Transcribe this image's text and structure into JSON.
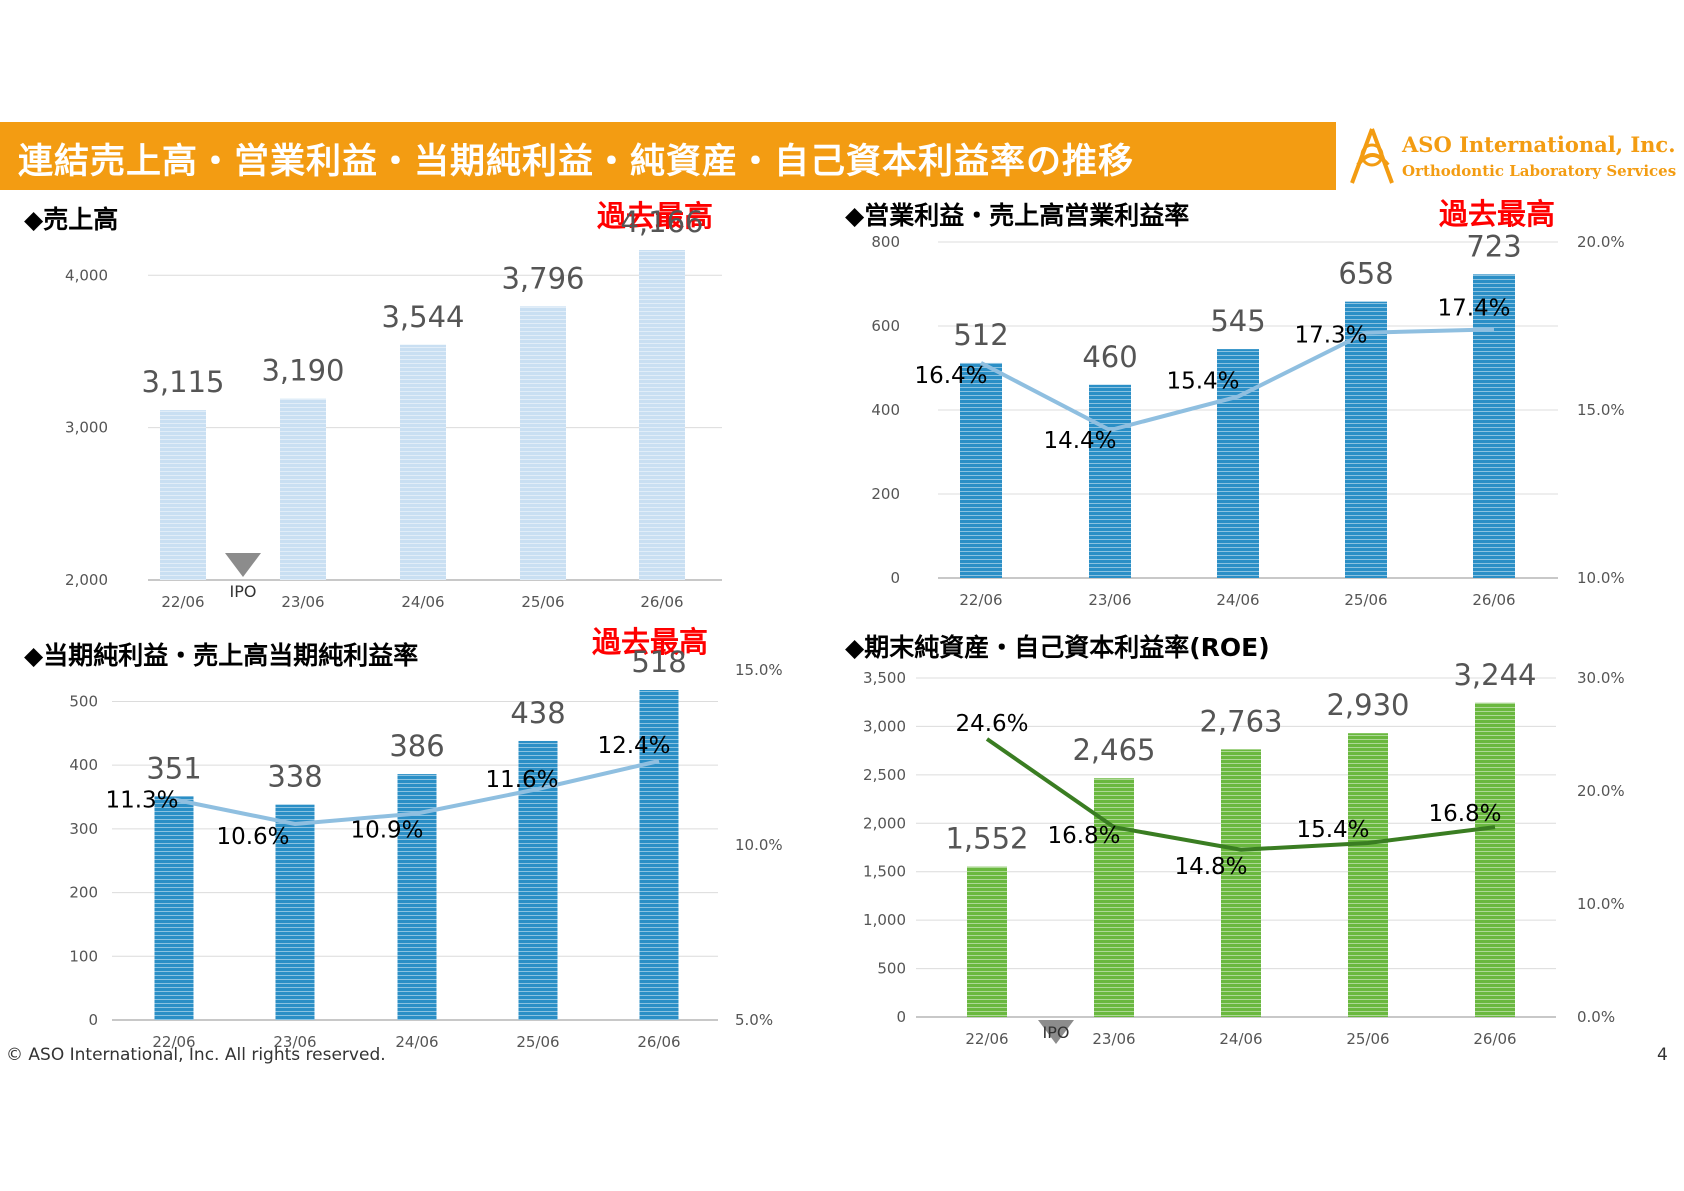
{
  "header": {
    "title": "連結売上高・営業利益・当期純利益・純資産・自己資本利益率の推移",
    "logo_name": "ASO International, Inc.",
    "logo_sub": "Orthodontic Laboratory Services",
    "accent_color": "#f39c12"
  },
  "footer": {
    "copyright": "© ASO International, Inc. All rights reserved.",
    "page": "4"
  },
  "record_label": "過去最高",
  "chart_data": [
    {
      "id": "sales",
      "type": "bar",
      "title": "◆売上高",
      "categories": [
        "22/06",
        "23/06",
        "24/06",
        "25/06",
        "26/06"
      ],
      "series": [
        {
          "values": [
            3115,
            3190,
            3544,
            3796,
            4166
          ]
        }
      ],
      "value_labels": [
        "3,115",
        "3,190",
        "3,544",
        "3,796",
        "4,166"
      ],
      "ylim": [
        2000,
        4166
      ],
      "y_ticks": [
        "2,000",
        "3,000",
        "4,000"
      ],
      "y_tick_values": [
        2000,
        3000,
        4000
      ],
      "ipo_marker": "IPO",
      "record": true,
      "bar_color": "#c9dff2"
    },
    {
      "id": "operating",
      "type": "bar+line",
      "title": "◆営業利益・売上高営業利益率",
      "categories": [
        "22/06",
        "23/06",
        "24/06",
        "25/06",
        "26/06"
      ],
      "series": [
        {
          "values": [
            512,
            460,
            545,
            658,
            723
          ]
        },
        {
          "values": [
            16.4,
            14.4,
            15.4,
            17.3,
            17.4
          ]
        }
      ],
      "value_labels": [
        "512",
        "460",
        "545",
        "658",
        "723"
      ],
      "rate_labels": [
        "16.4%",
        "14.4%",
        "15.4%",
        "17.3%",
        "17.4%"
      ],
      "ylim": [
        0,
        800
      ],
      "y_ticks": [
        "0",
        "200",
        "400",
        "600",
        "800"
      ],
      "y_tick_values": [
        0,
        200,
        400,
        600,
        800
      ],
      "y2lim": [
        10,
        20
      ],
      "y2_ticks": [
        "10.0%",
        "15.0%",
        "20.0%"
      ],
      "y2_tick_values": [
        10,
        15,
        20
      ],
      "record": true,
      "bar_color": "#2b8fc6",
      "line_color": "#8fbfe0"
    },
    {
      "id": "net-income",
      "type": "bar+line",
      "title": "◆当期純利益・売上高当期純利益率",
      "categories": [
        "22/06",
        "23/06",
        "24/06",
        "25/06",
        "26/06"
      ],
      "series": [
        {
          "values": [
            351,
            338,
            386,
            438,
            518
          ]
        },
        {
          "values": [
            11.3,
            10.6,
            10.9,
            11.6,
            12.4
          ]
        }
      ],
      "value_labels": [
        "351",
        "338",
        "386",
        "438",
        "518"
      ],
      "rate_labels": [
        "11.3%",
        "10.6%",
        "10.9%",
        "11.6%",
        "12.4%"
      ],
      "ylim": [
        0,
        518
      ],
      "y_ticks": [
        "0",
        "100",
        "200",
        "300",
        "400",
        "500"
      ],
      "y_tick_values": [
        0,
        100,
        200,
        300,
        400,
        500
      ],
      "y2lim": [
        5,
        15
      ],
      "y2_ticks": [
        "5.0%",
        "10.0%",
        "15.0%"
      ],
      "y2_tick_values": [
        5,
        10,
        15
      ],
      "record": true,
      "bar_color": "#2b8fc6",
      "line_color": "#8fbfe0"
    },
    {
      "id": "net-assets",
      "type": "bar+line",
      "title": "◆期末純資産・自己資本利益率(ROE)",
      "categories": [
        "22/06",
        "23/06",
        "24/06",
        "25/06",
        "26/06"
      ],
      "series": [
        {
          "values": [
            1552,
            2465,
            2763,
            2930,
            3244
          ]
        },
        {
          "values": [
            24.6,
            16.8,
            14.8,
            15.4,
            16.8
          ]
        }
      ],
      "value_labels": [
        "1,552",
        "2,465",
        "2,763",
        "2,930",
        "3,244"
      ],
      "rate_labels": [
        "24.6%",
        "16.8%",
        "14.8%",
        "15.4%",
        "16.8%"
      ],
      "ylim": [
        0,
        3500
      ],
      "y_ticks": [
        "0",
        "500",
        "1,000",
        "1,500",
        "2,000",
        "2,500",
        "3,000",
        "3,500"
      ],
      "y_tick_values": [
        0,
        500,
        1000,
        1500,
        2000,
        2500,
        3000,
        3500
      ],
      "y2lim": [
        0,
        30
      ],
      "y2_ticks": [
        "0.0%",
        "10.0%",
        "20.0%",
        "30.0%"
      ],
      "y2_tick_values": [
        0,
        10,
        20,
        30
      ],
      "ipo_marker": "IPO",
      "record": false,
      "bar_color": "#6ab83f",
      "line_color": "#3a7d22"
    }
  ]
}
